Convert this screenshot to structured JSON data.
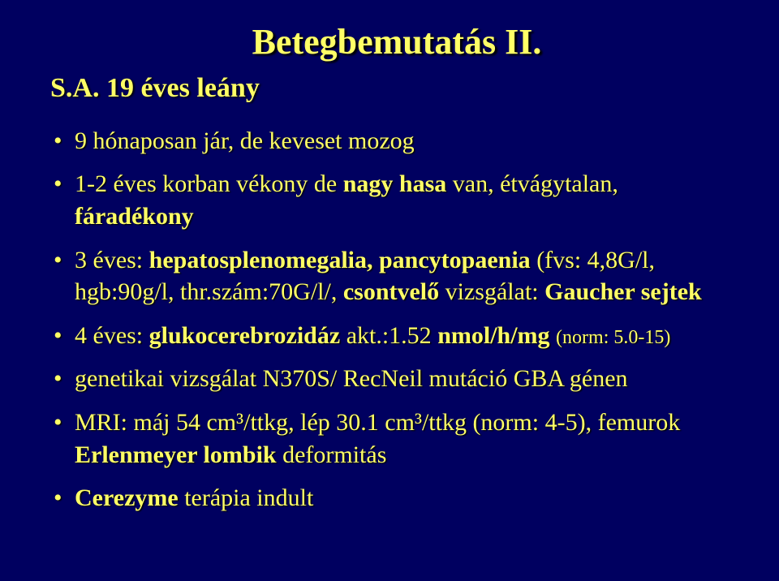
{
  "slide": {
    "title": "Betegbemutatás II.",
    "subtitle": "S.A. 19 éves leány",
    "bullets": [
      {
        "html": "9 hónaposan jár, de keveset mozog"
      },
      {
        "html": "1-2 éves korban vékony de <b>nagy hasa</b> van, étvágytalan, <b>fáradékony</b>"
      },
      {
        "html": "3 éves: <b>hepatosplenomegalia, pancytopaenia</b> (fvs: 4,8G/l, hgb:90g/l, thr.szám:70G/l/, <b>csontvelő</b> vizsgálat: <b>Gaucher sejtek</b>"
      },
      {
        "html": "4 éves: <b>glukocerebrozidáz</b> akt.:1.52 <b>nmol/h/mg</b> <span class=\"sub\">(norm: 5.0-15)</span>"
      },
      {
        "html": "genetikai vizsgálat N370S/ RecNeil mutáció GBA génen"
      },
      {
        "html": " MRI: máj 54 cm³/ttkg, lép 30.1 cm³/ttkg (norm: 4-5), femurok <b>Erlenmeyer lombik</b> deformitás"
      },
      {
        "html": "<b>Cerezyme</b> terápia indult"
      }
    ]
  },
  "colors": {
    "background": "#000060",
    "text": "#ffff66",
    "shadow": "#000000"
  },
  "typography": {
    "title_fontsize": 44,
    "subtitle_fontsize": 34,
    "bullet_fontsize": 30,
    "sub_fontsize": 24,
    "font_family": "Times New Roman"
  }
}
